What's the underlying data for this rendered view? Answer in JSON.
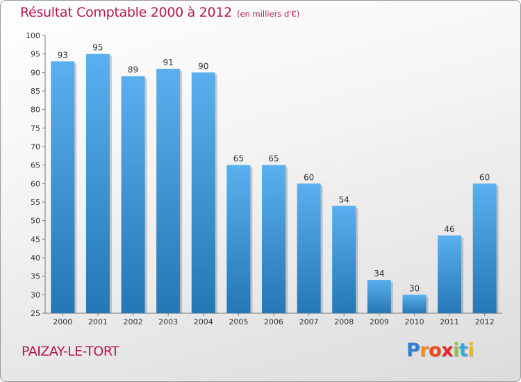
{
  "title": "Résultat Comptable 2000 à 2012",
  "subtitle": "(en milliers d'€)",
  "commune": "PAIZAY-LE-TORT",
  "logo": {
    "letters": [
      "P",
      "r",
      "o",
      "x",
      "i",
      "t",
      "i"
    ],
    "colors": [
      "#2e7fd1",
      "#f28c1c",
      "#e64a19",
      "#e2262d",
      "#8cc63f",
      "#2eaadc",
      "#f7b500"
    ]
  },
  "colors": {
    "title": "#b5164f",
    "bar_light": "#5ab0ee",
    "bar_dark": "#2577b5"
  },
  "chart_data": {
    "type": "bar",
    "categories": [
      "2000",
      "2001",
      "2002",
      "2003",
      "2004",
      "2005",
      "2006",
      "2007",
      "2008",
      "2009",
      "2010",
      "2011",
      "2012"
    ],
    "values": [
      93,
      95,
      89,
      91,
      90,
      65,
      65,
      60,
      54,
      34,
      30,
      46,
      60
    ],
    "ylim": [
      25,
      100
    ],
    "yticks": [
      25,
      30,
      35,
      40,
      45,
      50,
      55,
      60,
      65,
      70,
      75,
      80,
      85,
      90,
      95,
      100
    ],
    "xlabel": "",
    "ylabel": "",
    "grid": false,
    "data_labels": true
  }
}
